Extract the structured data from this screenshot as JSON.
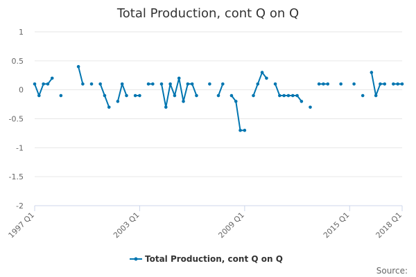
{
  "chart_data": {
    "type": "line",
    "title": "Total Production, cont Q on Q",
    "xlabel": "",
    "ylabel": "",
    "ylim": [
      -2,
      1
    ],
    "yticks": [
      "1",
      "0.5",
      "0",
      "-0.5",
      "-1",
      "-1.5",
      "-2"
    ],
    "xticks": [
      "1997 Q1",
      "2003 Q1",
      "2009 Q1",
      "2015 Q1",
      "2018 Q1"
    ],
    "x": [
      "1997 Q1",
      "1997 Q2",
      "1997 Q3",
      "1997 Q4",
      "1998 Q1",
      "1998 Q2",
      "1998 Q3",
      "1998 Q4",
      "1999 Q1",
      "1999 Q2",
      "1999 Q3",
      "1999 Q4",
      "2000 Q1",
      "2000 Q2",
      "2000 Q3",
      "2000 Q4",
      "2001 Q1",
      "2001 Q2",
      "2001 Q3",
      "2001 Q4",
      "2002 Q1",
      "2002 Q2",
      "2002 Q3",
      "2002 Q4",
      "2003 Q1",
      "2003 Q2",
      "2003 Q3",
      "2003 Q4",
      "2004 Q1",
      "2004 Q2",
      "2004 Q3",
      "2004 Q4",
      "2005 Q1",
      "2005 Q2",
      "2005 Q3",
      "2005 Q4",
      "2006 Q1",
      "2006 Q2",
      "2006 Q3",
      "2006 Q4",
      "2007 Q1",
      "2007 Q2",
      "2007 Q3",
      "2007 Q4",
      "2008 Q1",
      "2008 Q2",
      "2008 Q3",
      "2008 Q4",
      "2009 Q1",
      "2009 Q2",
      "2009 Q3",
      "2009 Q4",
      "2010 Q1",
      "2010 Q2",
      "2010 Q3",
      "2010 Q4",
      "2011 Q1",
      "2011 Q2",
      "2011 Q3",
      "2011 Q4",
      "2012 Q1",
      "2012 Q2",
      "2012 Q3",
      "2012 Q4",
      "2013 Q1",
      "2013 Q2",
      "2013 Q3",
      "2013 Q4",
      "2014 Q1",
      "2014 Q2",
      "2014 Q3",
      "2014 Q4",
      "2015 Q1",
      "2015 Q2",
      "2015 Q3",
      "2015 Q4",
      "2016 Q1",
      "2016 Q2",
      "2016 Q3",
      "2016 Q4",
      "2017 Q1",
      "2017 Q2",
      "2017 Q3",
      "2017 Q4",
      "2018 Q1"
    ],
    "series": [
      {
        "name": "Total Production, cont Q on Q",
        "color": "#0075b0",
        "values": [
          0.1,
          -0.1,
          0.1,
          0.1,
          0.2,
          null,
          -0.1,
          null,
          null,
          null,
          0.4,
          0.1,
          null,
          0.1,
          null,
          0.1,
          -0.1,
          -0.3,
          null,
          -0.2,
          0.1,
          -0.1,
          null,
          -0.1,
          -0.1,
          null,
          0.1,
          0.1,
          null,
          0.1,
          -0.3,
          0.1,
          -0.1,
          0.2,
          -0.2,
          0.1,
          0.1,
          -0.1,
          null,
          null,
          0.1,
          null,
          -0.1,
          0.1,
          null,
          -0.1,
          -0.2,
          -0.7,
          -0.7,
          null,
          -0.1,
          0.1,
          0.3,
          0.2,
          null,
          0.1,
          -0.1,
          -0.1,
          -0.1,
          -0.1,
          -0.1,
          -0.2,
          null,
          -0.3,
          null,
          0.1,
          0.1,
          0.1,
          null,
          null,
          0.1,
          null,
          null,
          0.1,
          null,
          -0.1,
          null,
          0.3,
          -0.1,
          0.1,
          0.1,
          null,
          0.1,
          0.1,
          0.1
        ]
      }
    ],
    "grid": true,
    "legend": "bottom-center"
  },
  "source_label": "Source:"
}
